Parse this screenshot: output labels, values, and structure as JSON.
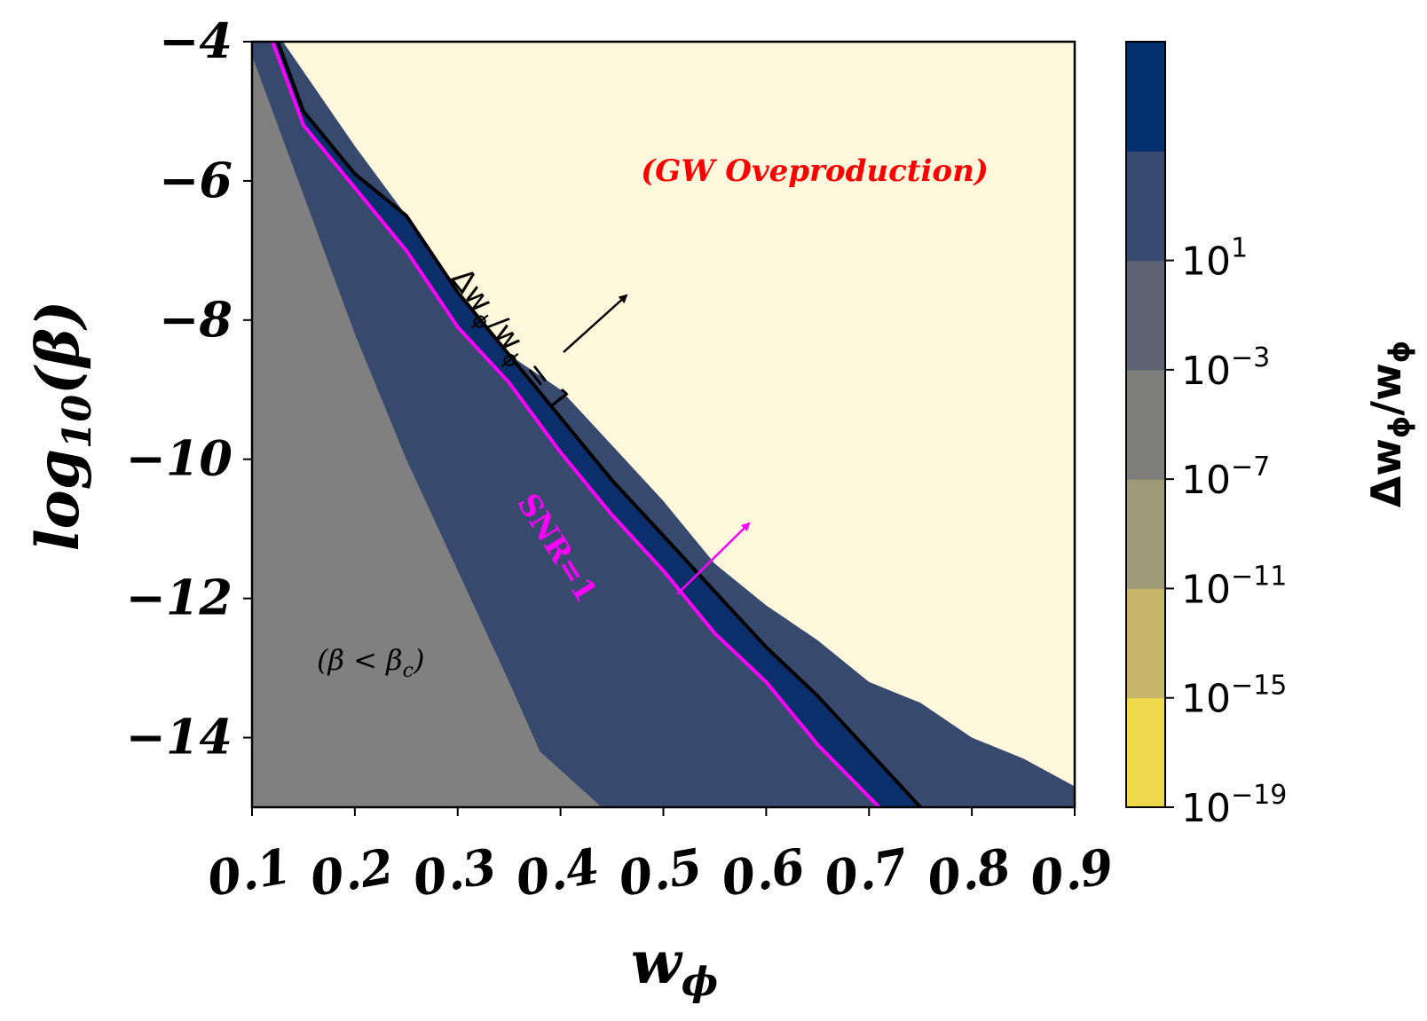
{
  "chart_data": {
    "type": "heatmap",
    "title": "",
    "xlabel": "w",
    "xlabel_sub": "ϕ",
    "ylabel": "log",
    "ylabel_sub": "10",
    "ylabel_arg": "(β)",
    "xlim": [
      0.1,
      0.9
    ],
    "ylim": [
      -15,
      -4
    ],
    "x_ticks": [
      0.1,
      0.2,
      0.3,
      0.4,
      0.5,
      0.6,
      0.7,
      0.8,
      0.9
    ],
    "x_tick_labels": [
      "0.1",
      "0.2",
      "0.3",
      "0.4",
      "0.5",
      "0.6",
      "0.7",
      "0.8",
      "0.9"
    ],
    "y_ticks": [
      -4,
      -6,
      -8,
      -10,
      -12,
      -14
    ],
    "y_tick_labels": [
      "−4",
      "−6",
      "−8",
      "−10",
      "−12",
      "−14"
    ],
    "regions": {
      "critical_boundary": [
        [
          0.1,
          -4.2
        ],
        [
          0.15,
          -6.2
        ],
        [
          0.2,
          -8.2
        ],
        [
          0.25,
          -10.0
        ],
        [
          0.3,
          -11.6
        ],
        [
          0.35,
          -13.2
        ],
        [
          0.38,
          -14.2
        ],
        [
          0.44,
          -15.0
        ]
      ],
      "blue_upper_boundary": [
        [
          0.13,
          -4.0
        ],
        [
          0.2,
          -5.5
        ],
        [
          0.25,
          -6.5
        ],
        [
          0.3,
          -7.8
        ],
        [
          0.35,
          -8.5
        ],
        [
          0.4,
          -9.0
        ],
        [
          0.45,
          -9.8
        ],
        [
          0.5,
          -10.6
        ],
        [
          0.55,
          -11.5
        ],
        [
          0.6,
          -12.1
        ],
        [
          0.65,
          -12.6
        ],
        [
          0.7,
          -13.2
        ],
        [
          0.75,
          -13.5
        ],
        [
          0.8,
          -14.0
        ],
        [
          0.85,
          -14.3
        ],
        [
          0.9,
          -14.7
        ]
      ]
    },
    "series": [
      {
        "name": "Δw_ϕ/w_ϕ = 1",
        "color": "#000000",
        "x": [
          0.125,
          0.15,
          0.2,
          0.25,
          0.3,
          0.35,
          0.4,
          0.45,
          0.5,
          0.55,
          0.6,
          0.65,
          0.7,
          0.75
        ],
        "y": [
          -4.0,
          -5.0,
          -5.9,
          -6.5,
          -7.6,
          -8.5,
          -9.4,
          -10.3,
          -11.1,
          -11.9,
          -12.7,
          -13.4,
          -14.2,
          -15.0
        ]
      },
      {
        "name": "SNR=1",
        "color": "#ff00ff",
        "x": [
          0.12,
          0.15,
          0.2,
          0.25,
          0.3,
          0.35,
          0.4,
          0.45,
          0.5,
          0.55,
          0.6,
          0.65,
          0.71
        ],
        "y": [
          -4.0,
          -5.2,
          -6.1,
          -7.0,
          -8.1,
          -8.9,
          -9.9,
          -10.8,
          -11.6,
          -12.5,
          -13.2,
          -14.1,
          -15.0
        ]
      }
    ],
    "annotations": {
      "overproduction": "(GW Oveproduction)",
      "delta_label": "Δw",
      "delta_sub": "ϕ",
      "delta_mid": "/w",
      "delta_sub2": "ϕ",
      "delta_end": " = 1",
      "snr_label": "SNR=1",
      "crit_open": "(β < β",
      "crit_sub": "c",
      "crit_close": ")"
    },
    "colorbar": {
      "label": "Δw",
      "label_sub": "ϕ",
      "label_mid": "/w",
      "label_sub2": "ϕ",
      "tick_base": "10",
      "tick_exponents": [
        "1",
        "−3",
        "−7",
        "−11",
        "−15",
        "−19"
      ],
      "bands": [
        "#eed84b",
        "#c8b66a",
        "#a09a78",
        "#7e7e7a",
        "#5d6373",
        "#384a70",
        "#03306e"
      ]
    },
    "colors": {
      "overproduction_fill": "#fff8dd",
      "critical_fill": "#808080",
      "main_fill": "#374a6e",
      "dark_band": "#0a2f6b",
      "arrow_black": "#000000",
      "arrow_magenta": "#ff00ff"
    }
  }
}
